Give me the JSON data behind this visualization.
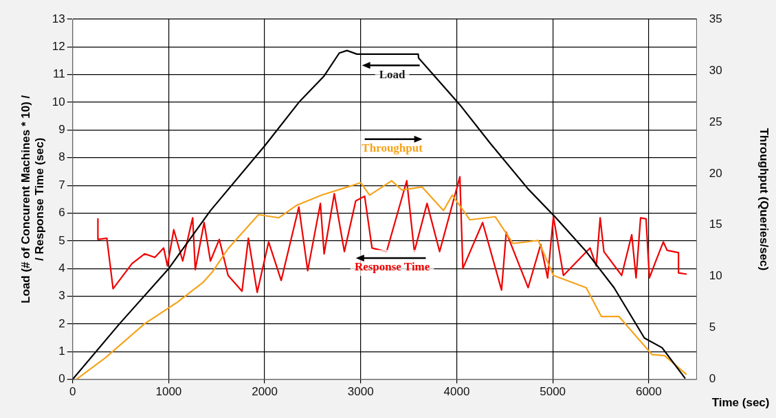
{
  "chart_data": {
    "type": "line",
    "xlabel": "Time (sec)",
    "ylabel": "Load (# of Concurent Machines * 10) /\n/ Response Time (sec)",
    "y2label": "Throughput (Queries/sec)",
    "xlim": [
      0,
      6500
    ],
    "xticks": [
      0,
      1000,
      2000,
      3000,
      4000,
      5000,
      6000
    ],
    "ylim": [
      0,
      13
    ],
    "yticks": [
      0,
      1,
      2,
      3,
      4,
      5,
      6,
      7,
      8,
      9,
      10,
      11,
      12,
      13
    ],
    "y2lim": [
      0,
      35
    ],
    "y2ticks": [
      0,
      5,
      10,
      15,
      20,
      25,
      30,
      35
    ],
    "grid": true,
    "legend": false,
    "marker": "none",
    "line_style": "solid",
    "series": [
      {
        "color": "#000000",
        "x": [
          0,
          487,
          1001,
          1435,
          2003,
          2356,
          2619,
          2777,
          2857,
          2961,
          3164,
          3599,
          3603,
          4033,
          4349,
          4744,
          5033,
          5349,
          5638,
          5955,
          6139,
          6376
        ],
        "values": [
          0,
          2.0,
          4.0,
          6.09,
          8.44,
          10.0,
          10.95,
          11.78,
          11.87,
          11.74,
          11.74,
          11.74,
          11.6,
          9.91,
          8.52,
          6.87,
          5.83,
          4.61,
          3.31,
          1.49,
          1.14,
          0.05
        ]
      },
      {
        "color": "#f5a31a",
        "axis": "y2",
        "x": [
          40,
          342,
          750,
          1092,
          1356,
          1461,
          1619,
          1935,
          2146,
          2330,
          2593,
          3001,
          3093,
          3322,
          3428,
          3638,
          3862,
          3954,
          4138,
          4402,
          4586,
          4849,
          5007,
          5349,
          5507,
          5691,
          6034,
          6165,
          6389
        ],
        "values": [
          0,
          2.1,
          5.4,
          7.5,
          9.4,
          10.5,
          12.7,
          16.0,
          15.7,
          16.9,
          17.9,
          19.1,
          17.9,
          19.3,
          18.4,
          18.7,
          16.4,
          17.9,
          15.5,
          15.8,
          13.2,
          13.5,
          10.1,
          8.9,
          6.1,
          6.1,
          2.4,
          2.3,
          0.5
        ]
      },
      {
        "color": "#ee0000",
        "x": [
          263,
          263,
          356,
          421,
          619,
          750,
          856,
          948,
          987,
          1053,
          1146,
          1250,
          1277,
          1369,
          1435,
          1527,
          1619,
          1764,
          1830,
          1922,
          2041,
          2172,
          2356,
          2448,
          2580,
          2619,
          2725,
          2830,
          2948,
          3041,
          3118,
          3270,
          3480,
          3559,
          3691,
          3822,
          4033,
          4064,
          4270,
          4467,
          4516,
          4744,
          4875,
          4947,
          5007,
          5112,
          5389,
          5454,
          5494,
          5533,
          5718,
          5823,
          5868,
          5915,
          5972,
          6007,
          6064,
          6152,
          6191,
          6310,
          6310,
          6389
        ],
        "values": [
          5.79,
          5.05,
          5.09,
          3.27,
          4.18,
          4.53,
          4.4,
          4.74,
          4.09,
          5.4,
          4.27,
          5.83,
          3.96,
          5.66,
          4.27,
          5.05,
          3.75,
          3.18,
          5.09,
          3.14,
          4.96,
          3.57,
          6.22,
          3.92,
          6.35,
          4.53,
          6.7,
          4.61,
          6.44,
          6.61,
          4.74,
          4.61,
          7.17,
          4.61,
          6.35,
          4.61,
          7.31,
          4.0,
          5.66,
          3.22,
          5.31,
          3.31,
          4.87,
          3.66,
          5.87,
          3.75,
          4.74,
          4.09,
          5.83,
          4.61,
          3.75,
          5.22,
          3.66,
          5.83,
          5.79,
          3.66,
          4.18,
          4.96,
          4.66,
          4.57,
          3.84,
          3.8
        ]
      }
    ],
    "annotations": [
      "Load",
      "Throughput",
      "Response Time"
    ]
  }
}
